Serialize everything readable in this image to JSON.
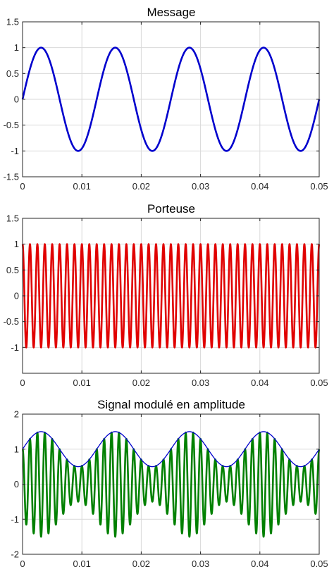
{
  "chart_data": [
    {
      "type": "line",
      "title": "Message",
      "xlabel": "",
      "ylabel": "",
      "xlim": [
        0,
        0.05
      ],
      "ylim": [
        -1.5,
        1.5
      ],
      "grid": true,
      "xticks": [
        "0",
        "0.01",
        "0.02",
        "0.03",
        "0.04",
        "0.05"
      ],
      "yticks": [
        "-1.5",
        "-1",
        "-0.5",
        "0",
        "0.5",
        "1",
        "1.5"
      ],
      "series": [
        {
          "kind": "sine",
          "frequency_hz": 80,
          "amplitude": 1,
          "offset": 0,
          "color": "#0000CD"
        }
      ]
    },
    {
      "type": "line",
      "title": "Porteuse",
      "xlabel": "",
      "ylabel": "",
      "xlim": [
        0,
        0.05
      ],
      "ylim": [
        -1.5,
        1.5
      ],
      "grid": true,
      "xticks": [
        "0",
        "0.01",
        "0.02",
        "0.03",
        "0.04",
        "0.05"
      ],
      "yticks": [
        "-1",
        "-0.5",
        "0",
        "0.5",
        "1",
        "1.5"
      ],
      "series": [
        {
          "kind": "cosine",
          "frequency_hz": 800,
          "amplitude": 1,
          "offset": 0,
          "color": "#E00000"
        }
      ]
    },
    {
      "type": "line",
      "title": "Signal modulé en amplitude",
      "xlabel": "",
      "ylabel": "",
      "xlim": [
        0,
        0.05
      ],
      "ylim": [
        -2,
        2
      ],
      "grid": true,
      "xticks": [
        "0",
        "0.01",
        "0.02",
        "0.03",
        "0.04",
        "0.05"
      ],
      "yticks": [
        "-2",
        "-1",
        "0",
        "1",
        "2"
      ],
      "series": [
        {
          "kind": "am_signal",
          "carrier_hz": 800,
          "message_hz": 80,
          "modulation_index": 0.5,
          "carrier_amplitude": 1,
          "color": "#008000"
        },
        {
          "kind": "envelope",
          "message_hz": 80,
          "modulation_index": 0.5,
          "carrier_amplitude": 1,
          "color": "#0000CD"
        }
      ]
    }
  ]
}
